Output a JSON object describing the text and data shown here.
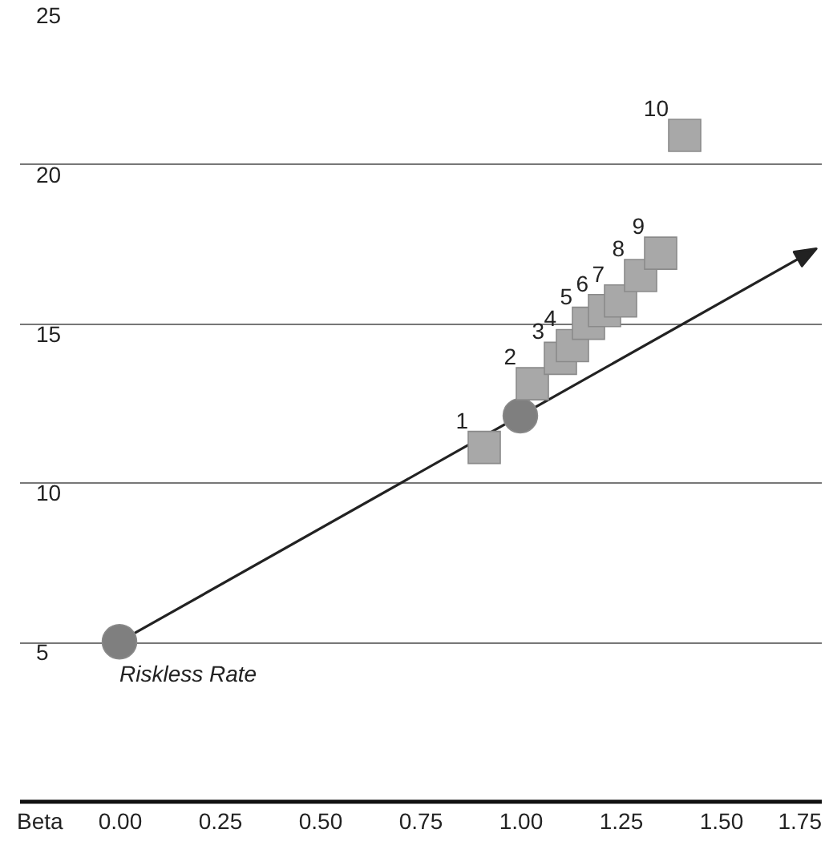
{
  "chart_data": {
    "type": "scatter",
    "xlabel": "Beta",
    "xlim": [
      -0.25,
      1.75
    ],
    "ylim": [
      0,
      25
    ],
    "xticks": [
      {
        "value": 0,
        "label": "0.00"
      },
      {
        "value": 0.25,
        "label": "0.25"
      },
      {
        "value": 0.5,
        "label": "0.50"
      },
      {
        "value": 0.75,
        "label": "0.75"
      },
      {
        "value": 1,
        "label": "1.00"
      },
      {
        "value": 1.25,
        "label": "1.25"
      },
      {
        "value": 1.5,
        "label": "1.50"
      },
      {
        "value": 1.75,
        "label": "1.75"
      }
    ],
    "yticks": [
      5,
      10,
      15,
      20,
      25
    ],
    "grid": "y",
    "series": [
      {
        "color": "#7f7f7f",
        "marker": "circle",
        "x": [
          0,
          1.0
        ],
        "values": [
          5,
          12.1
        ]
      },
      {
        "color": "#a8a8a8",
        "marker": "square",
        "x": [
          0.91,
          1.03,
          1.1,
          1.13,
          1.17,
          1.21,
          1.25,
          1.3,
          1.35,
          1.41
        ],
        "values": [
          11.1,
          13.1,
          13.9,
          14.3,
          15.0,
          15.4,
          15.7,
          16.5,
          17.2,
          20.9
        ]
      }
    ],
    "annotations": [
      {
        "text": "Riskless Rate",
        "x": 0,
        "y": 5
      },
      {
        "text": "1",
        "x": 0.91,
        "y": 11.1
      },
      {
        "text": "2",
        "x": 1.03,
        "y": 13.1
      },
      {
        "text": "3",
        "x": 1.1,
        "y": 13.9
      },
      {
        "text": "4",
        "x": 1.13,
        "y": 14.3
      },
      {
        "text": "5",
        "x": 1.17,
        "y": 15.0
      },
      {
        "text": "6",
        "x": 1.21,
        "y": 15.4
      },
      {
        "text": "7",
        "x": 1.25,
        "y": 15.7
      },
      {
        "text": "8",
        "x": 1.3,
        "y": 16.5
      },
      {
        "text": "9",
        "x": 1.35,
        "y": 17.2
      },
      {
        "text": "10",
        "x": 1.41,
        "y": 20.9
      }
    ]
  }
}
